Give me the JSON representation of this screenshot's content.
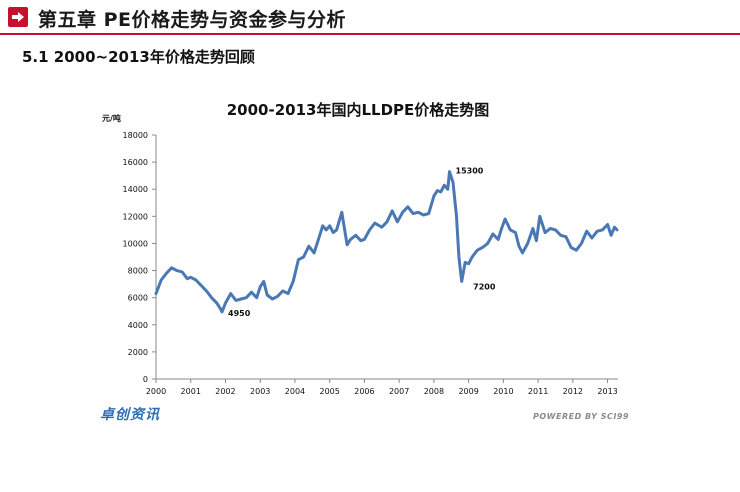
{
  "header": {
    "title": "第五章 PE价格走势与资金参与分析",
    "section": "5.1 2000~2013年价格走势回顾"
  },
  "footer": {
    "logo_text": "卓创资讯",
    "powered_text": "POWERED BY SCI99"
  },
  "colors": {
    "accent": "#c8102e",
    "line": "#4a78b5"
  },
  "icons": {
    "header_icon": "arrow-right-icon"
  },
  "chart_data": {
    "type": "line",
    "title": "2000-2013年国内LLDPE价格走势图",
    "ylabel": "元/吨",
    "xlabel": "",
    "ylim": [
      0,
      18000
    ],
    "yticks": [
      0,
      2000,
      4000,
      6000,
      8000,
      10000,
      12000,
      14000,
      16000,
      18000
    ],
    "xlim": [
      2000,
      2013.3
    ],
    "xticks": [
      "2000",
      "2001",
      "2002",
      "2003",
      "2004",
      "2005",
      "2006",
      "2007",
      "2008",
      "2009",
      "2010",
      "2011",
      "2012",
      "2013"
    ],
    "grid": false,
    "annotations": [
      {
        "text": "15300",
        "x": 2008.45,
        "y": 15300
      },
      {
        "text": "4950",
        "x": 2001.9,
        "y": 4950
      },
      {
        "text": "7200",
        "x": 2008.9,
        "y": 7200
      }
    ],
    "series": [
      {
        "x": [
          2000.0,
          2000.15,
          2000.3,
          2000.45,
          2000.6,
          2000.75,
          2000.9,
          2001.0,
          2001.15,
          2001.3,
          2001.45,
          2001.6,
          2001.75,
          2001.85,
          2001.9,
          2002.0,
          2002.15,
          2002.3,
          2002.45,
          2002.6,
          2002.75,
          2002.9,
          2003.0,
          2003.1,
          2003.2,
          2003.35,
          2003.5,
          2003.65,
          2003.8,
          2003.95,
          2004.1,
          2004.25,
          2004.4,
          2004.55,
          2004.7,
          2004.8,
          2004.9,
          2005.0,
          2005.1,
          2005.2,
          2005.35,
          2005.5,
          2005.6,
          2005.75,
          2005.9,
          2006.0,
          2006.15,
          2006.3,
          2006.5,
          2006.65,
          2006.8,
          2006.95,
          2007.1,
          2007.25,
          2007.4,
          2007.55,
          2007.7,
          2007.85,
          2008.0,
          2008.1,
          2008.2,
          2008.3,
          2008.4,
          2008.45,
          2008.55,
          2008.65,
          2008.72,
          2008.8,
          2008.9,
          2009.0,
          2009.1,
          2009.25,
          2009.4,
          2009.55,
          2009.7,
          2009.85,
          2009.95,
          2010.05,
          2010.2,
          2010.35,
          2010.45,
          2010.55,
          2010.7,
          2010.85,
          2010.95,
          2011.05,
          2011.2,
          2011.35,
          2011.5,
          2011.65,
          2011.8,
          2011.95,
          2012.1,
          2012.25,
          2012.4,
          2012.55,
          2012.7,
          2012.85,
          2013.0,
          2013.1,
          2013.2,
          2013.27
        ],
        "y": [
          6300,
          7300,
          7800,
          8200,
          8000,
          7900,
          7400,
          7500,
          7300,
          6900,
          6500,
          6000,
          5600,
          5200,
          4950,
          5600,
          6300,
          5800,
          5900,
          6000,
          6400,
          6000,
          6800,
          7200,
          6200,
          5900,
          6100,
          6500,
          6300,
          7200,
          8800,
          9000,
          9800,
          9300,
          10500,
          11300,
          11000,
          11300,
          10800,
          11000,
          12300,
          9900,
          10300,
          10600,
          10200,
          10300,
          11000,
          11500,
          11200,
          11600,
          12400,
          11600,
          12300,
          12700,
          12200,
          12300,
          12100,
          12200,
          13500,
          13900,
          13800,
          14300,
          14000,
          15300,
          14500,
          12000,
          9000,
          7200,
          8600,
          8500,
          9000,
          9500,
          9700,
          10000,
          10700,
          10300,
          11100,
          11800,
          11000,
          10800,
          9800,
          9300,
          10000,
          11100,
          10200,
          12000,
          10800,
          11100,
          11000,
          10600,
          10500,
          9700,
          9500,
          10000,
          10900,
          10400,
          10900,
          11000,
          11400,
          10600,
          11200,
          11000
        ]
      }
    ]
  }
}
